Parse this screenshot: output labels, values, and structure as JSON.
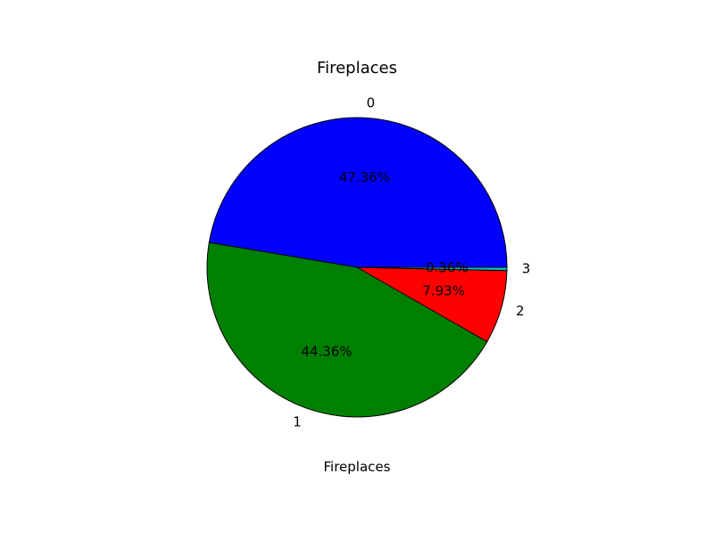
{
  "chart_data": {
    "type": "pie",
    "title": "Fireplaces",
    "xlabel": "Fireplaces",
    "categories": [
      "0",
      "1",
      "2",
      "3"
    ],
    "values": [
      47.36,
      44.36,
      7.93,
      0.36
    ],
    "pct_labels": [
      "47.36%",
      "44.36%",
      "7.93%",
      "0.36%"
    ],
    "colors": [
      "#0000ff",
      "#008000",
      "#ff0000",
      "#00bfbf"
    ],
    "start_angle_deg": 0,
    "direction": "counterclockwise",
    "edge_color": "#000000"
  }
}
